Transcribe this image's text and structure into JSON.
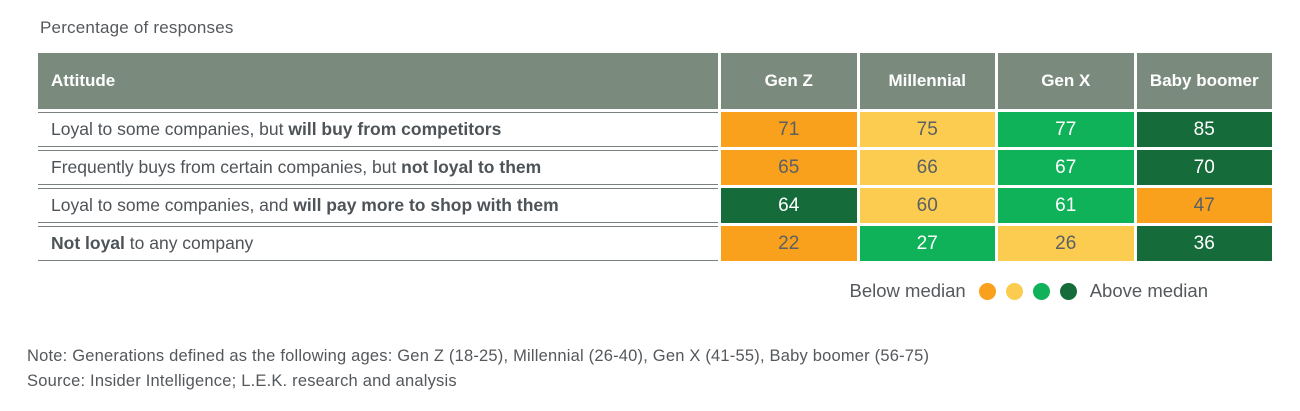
{
  "title": "Percentage of responses",
  "colors": {
    "orange": {
      "bg": "#F9A11C",
      "fg": "#5B6064"
    },
    "yellow": {
      "bg": "#FBCC4F",
      "fg": "#5B6064"
    },
    "green": {
      "bg": "#10B259",
      "fg": "#FFFFFF"
    },
    "dark_green": {
      "bg": "#156B3A",
      "fg": "#FFFFFF"
    },
    "header_bg": "#7A8B7E",
    "header_fg": "#FFFFFF"
  },
  "table": {
    "header": {
      "attitude_label": "Attitude",
      "columns": [
        "Gen Z",
        "Millennial",
        "Gen X",
        "Baby boomer"
      ]
    },
    "rows": [
      {
        "label_segments": [
          {
            "text": "Loyal to some companies, but ",
            "bold": false
          },
          {
            "text": "will buy from competitors",
            "bold": true
          }
        ],
        "cells": [
          {
            "value": "71",
            "color": "orange"
          },
          {
            "value": "75",
            "color": "yellow"
          },
          {
            "value": "77",
            "color": "green"
          },
          {
            "value": "85",
            "color": "dark_green"
          }
        ]
      },
      {
        "label_segments": [
          {
            "text": "Frequently buys from certain companies, but ",
            "bold": false
          },
          {
            "text": "not loyal to them",
            "bold": true
          }
        ],
        "cells": [
          {
            "value": "65",
            "color": "orange"
          },
          {
            "value": "66",
            "color": "yellow"
          },
          {
            "value": "67",
            "color": "green"
          },
          {
            "value": "70",
            "color": "dark_green"
          }
        ]
      },
      {
        "label_segments": [
          {
            "text": "Loyal to some companies, and ",
            "bold": false
          },
          {
            "text": "will pay more to shop with them",
            "bold": true
          }
        ],
        "cells": [
          {
            "value": "64",
            "color": "dark_green"
          },
          {
            "value": "60",
            "color": "yellow"
          },
          {
            "value": "61",
            "color": "green"
          },
          {
            "value": "47",
            "color": "orange"
          }
        ]
      },
      {
        "label_segments": [
          {
            "text": "Not loyal",
            "bold": true
          },
          {
            "text": " to any company",
            "bold": false
          }
        ],
        "cells": [
          {
            "value": "22",
            "color": "orange"
          },
          {
            "value": "27",
            "color": "green"
          },
          {
            "value": "26",
            "color": "yellow"
          },
          {
            "value": "36",
            "color": "dark_green"
          }
        ]
      }
    ]
  },
  "legend": {
    "below_label": "Below median",
    "above_label": "Above median",
    "dots": [
      "orange",
      "yellow",
      "green",
      "dark_green"
    ]
  },
  "note": "Note: Generations defined as the following ages: Gen Z (18-25), Millennial (26-40), Gen X (41-55), Baby boomer (56-75)",
  "source": "Source: Insider Intelligence; L.E.K. research and analysis",
  "chart_data": {
    "type": "heatmap",
    "title": "Percentage of responses",
    "columns": [
      "Gen Z",
      "Millennial",
      "Gen X",
      "Baby boomer"
    ],
    "rows": [
      "Loyal to some companies, but will buy from competitors",
      "Frequently buys from certain companies, but not loyal to them",
      "Loyal to some companies, and will pay more to shop with them",
      "Not loyal to any company"
    ],
    "values": [
      [
        71,
        75,
        77,
        85
      ],
      [
        65,
        66,
        67,
        70
      ],
      [
        64,
        60,
        61,
        47
      ],
      [
        22,
        27,
        26,
        36
      ]
    ],
    "cell_color_buckets": [
      [
        "orange",
        "yellow",
        "green",
        "dark_green"
      ],
      [
        "orange",
        "yellow",
        "green",
        "dark_green"
      ],
      [
        "dark_green",
        "yellow",
        "green",
        "orange"
      ],
      [
        "orange",
        "green",
        "yellow",
        "dark_green"
      ]
    ],
    "legend": {
      "scale": [
        "orange",
        "yellow",
        "green",
        "dark_green"
      ],
      "low_label": "Below median",
      "high_label": "Above median",
      "position": "bottom-right"
    },
    "grid": false
  }
}
